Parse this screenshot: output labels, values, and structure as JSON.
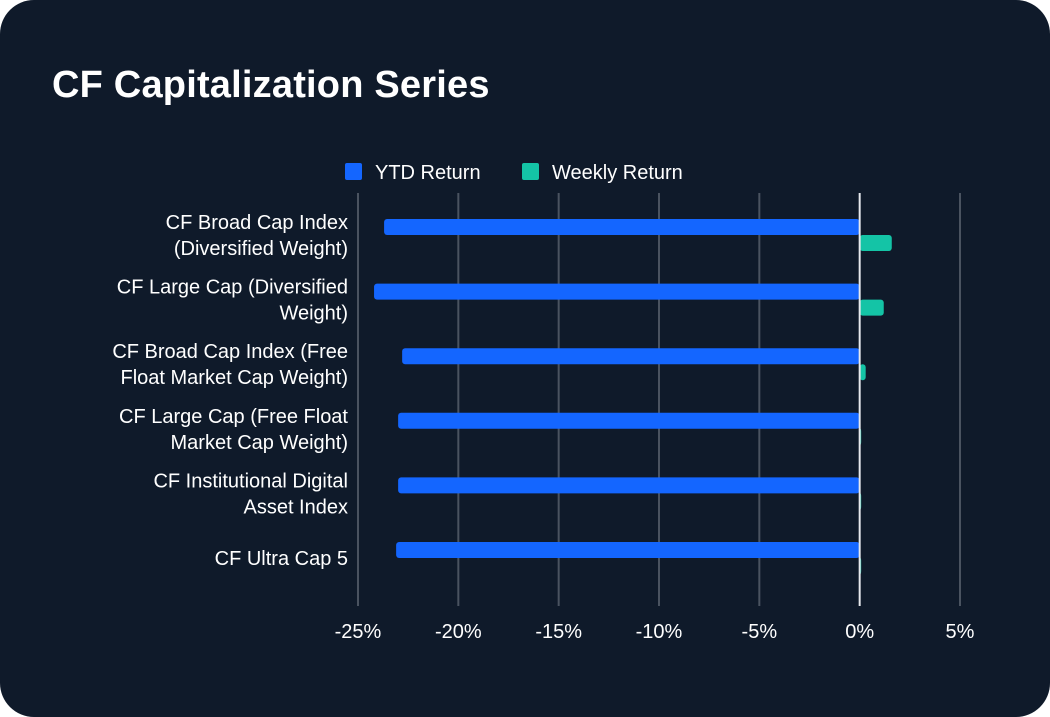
{
  "title": "CF Capitalization Series",
  "chart_data": {
    "type": "bar",
    "orientation": "horizontal",
    "title": "CF Capitalization Series",
    "xlabel": "",
    "ylabel": "",
    "xlim": [
      -25,
      5
    ],
    "x_ticks": [
      -25,
      -20,
      -15,
      -10,
      -5,
      0,
      5
    ],
    "x_tick_labels": [
      "-25%",
      "-20%",
      "-15%",
      "-10%",
      "-5%",
      "0%",
      "5%"
    ],
    "grid": true,
    "legend_position": "top-center",
    "categories": [
      [
        "CF Broad Cap Index",
        "(Diversified Weight)"
      ],
      [
        "CF Large Cap (Diversified",
        "Weight)"
      ],
      [
        "CF Broad Cap Index (Free",
        "Float Market Cap Weight)"
      ],
      [
        "CF Large Cap (Free Float",
        "Market Cap Weight)"
      ],
      [
        "CF Institutional Digital",
        "Asset Index"
      ],
      [
        "CF Ultra Cap 5"
      ]
    ],
    "series": [
      {
        "name": "YTD Return",
        "color": "#1466ff",
        "values": [
          -23.7,
          -24.2,
          -22.8,
          -23.0,
          -23.0,
          -23.1
        ]
      },
      {
        "name": "Weekly Return",
        "color": "#14c4a6",
        "values": [
          1.6,
          1.2,
          0.3,
          0.05,
          0.05,
          0.02
        ]
      }
    ]
  },
  "colors": {
    "background": "#0f1a2a",
    "text": "#ffffff",
    "grid": "#4a5360",
    "zero_line": "#e6e8ec"
  }
}
